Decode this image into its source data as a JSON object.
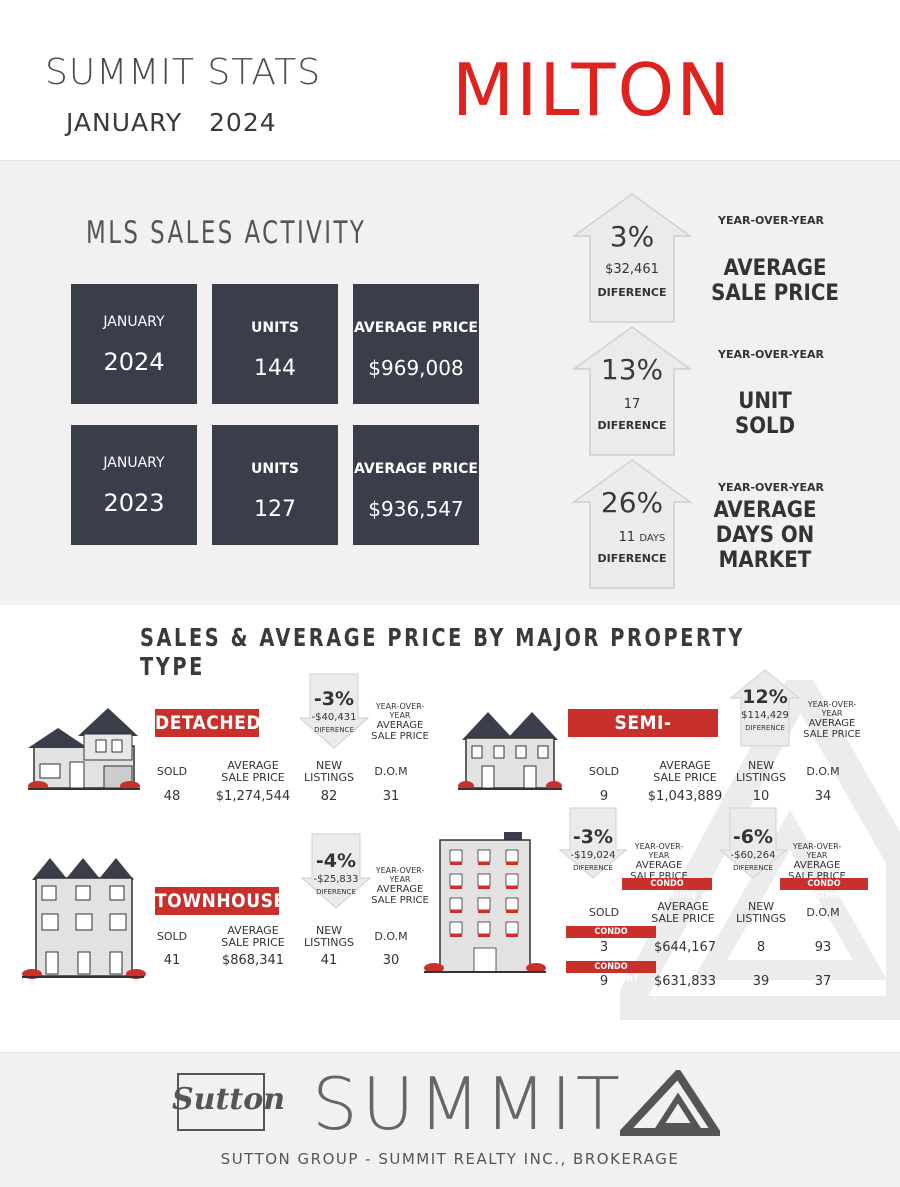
{
  "header": {
    "brand": "SUMMIT STATS",
    "month": "JANUARY",
    "year": "2024",
    "city": "MILTON"
  },
  "mls": {
    "title": "MLS SALES ACTIVITY",
    "rows": [
      {
        "period_label": "JANUARY",
        "period_year": "2024",
        "units_label": "UNITS",
        "units": "144",
        "price_label": "AVERAGE PRICE",
        "price": "$969,008"
      },
      {
        "period_label": "JANUARY",
        "period_year": "2023",
        "units_label": "UNITS",
        "units": "127",
        "price_label": "AVERAGE PRICE",
        "price": "$936,547"
      }
    ]
  },
  "yoy": {
    "label": "YEAR-OVER-YEAR",
    "difference_label": "DIFERENCE",
    "items": [
      {
        "pct": "3%",
        "diff": "$32,461",
        "title_line1": "AVERAGE",
        "title_line2": "SALE PRICE"
      },
      {
        "pct": "13%",
        "diff": "17",
        "title_line1": "UNIT",
        "title_line2": "SOLD"
      },
      {
        "pct": "26%",
        "diff": "11",
        "diff_unit": "DAYS",
        "title_line1": "AVERAGE",
        "title_line2": "DAYS ON",
        "title_line3": "MARKET"
      }
    ]
  },
  "property": {
    "title": "SALES & AVERAGE PRICE BY MAJOR PROPERTY TYPE",
    "col_headers": {
      "sold": "SOLD",
      "avg1": "AVERAGE",
      "avg2": "SALE PRICE",
      "new1": "NEW",
      "new2": "LISTINGS",
      "dom": "D.O.M"
    },
    "yoy_small": "YEAR-OVER-YEAR",
    "yoy_avg": "AVERAGE",
    "yoy_sale": "SALE PRICE",
    "difference_label": "DIFERENCE",
    "detached": {
      "name": "DETACHED",
      "pct": "-3%",
      "diff": "-$40,431",
      "sold": "48",
      "price": "$1,274,544",
      "new": "82",
      "dom": "31"
    },
    "semi": {
      "name": "SEMI-DETACHED",
      "pct": "12%",
      "diff": "$114,429",
      "sold": "9",
      "price": "$1,043,889",
      "new": "10",
      "dom": "34"
    },
    "townhouse": {
      "name": "TOWNHOUSE",
      "pct": "-4%",
      "diff": "-$25,833",
      "sold": "41",
      "price": "$868,341",
      "new": "41",
      "dom": "30"
    },
    "condo_town": {
      "name": "CONDO TOWNHOUSE",
      "pct": "-3%",
      "diff": "-$19,024",
      "sold": "3",
      "price": "$644,167",
      "new": "8",
      "dom": "93"
    },
    "condo_apt": {
      "name": "CONDO APARTMENT",
      "pct": "-6%",
      "diff": "-$60,264",
      "sold": "9",
      "price": "$631,833",
      "new": "39",
      "dom": "37"
    }
  },
  "footer": {
    "sutton": "Sutton",
    "summit": "SUMMIT",
    "brokerage": "SUTTON GROUP - SUMMIT REALTY INC., BROKERAGE"
  },
  "colors": {
    "accent": "#e0221f",
    "tag": "#c9302c",
    "tile": "#3a3d4a",
    "band": "#f1f1f1"
  }
}
